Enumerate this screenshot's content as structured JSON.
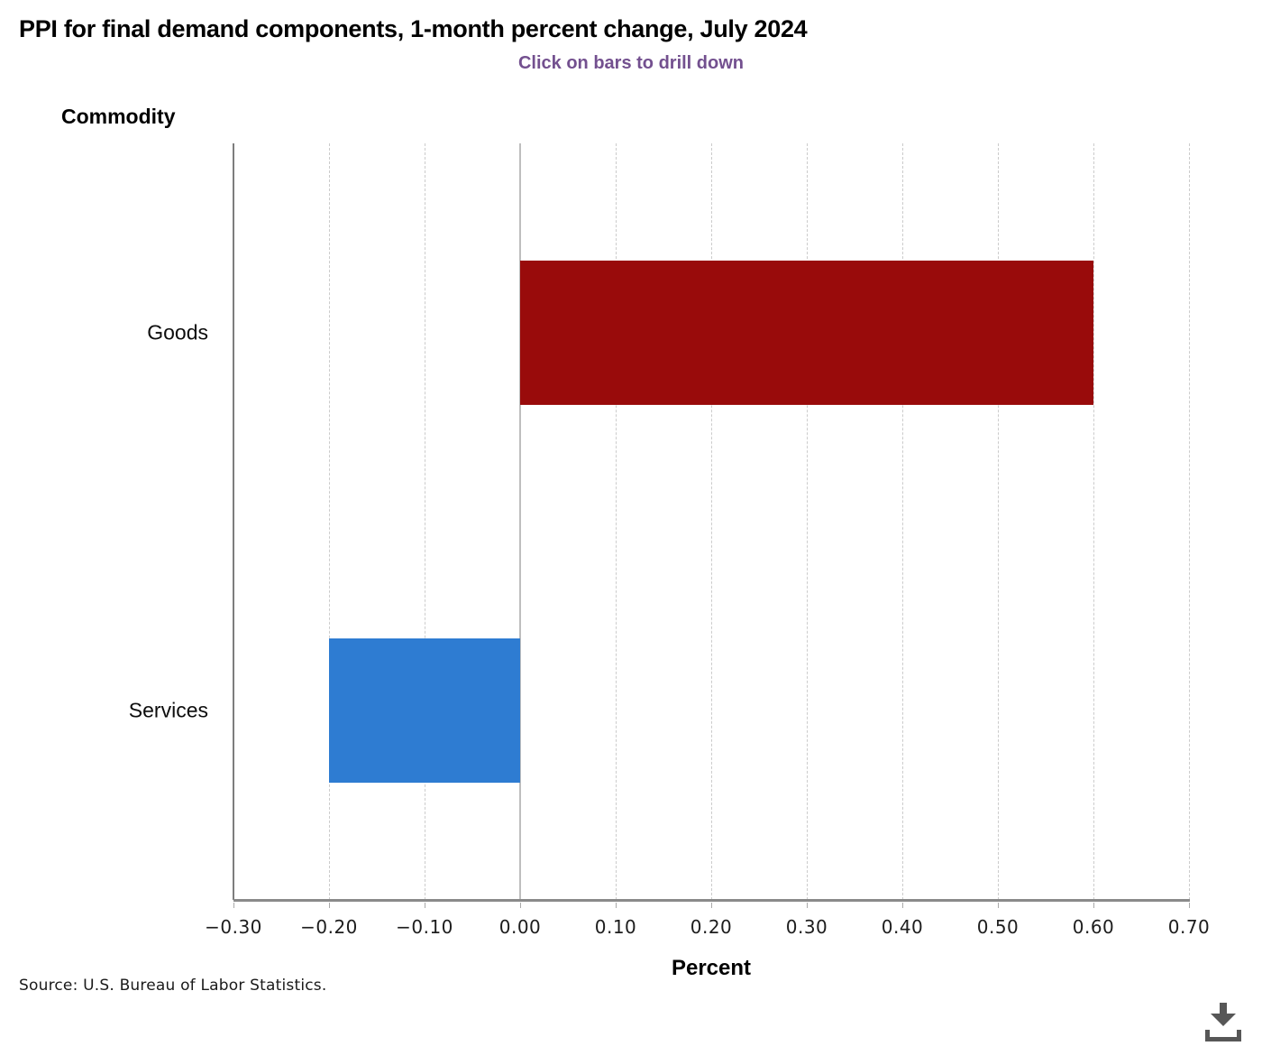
{
  "header": {
    "title": "PPI for final demand components, 1-month percent change, July 2024",
    "subtitle": "Click on bars to drill down"
  },
  "footer": {
    "source": "Source: U.S. Bureau of Labor Statistics."
  },
  "icons": {
    "download": "download-icon"
  },
  "colors": {
    "subtitle_purple": "#73508F",
    "goods_bar_red": "#990B0B",
    "services_bar_blue": "#2E7CD2",
    "axis_gray": "#8A8A8A",
    "zero_line_gray": "#BEBEBE",
    "gridline_gray": "#CBCBCB",
    "download_icon_gray": "#575757"
  },
  "chart_data": {
    "type": "bar",
    "orientation": "horizontal",
    "title": "PPI for final demand components, 1-month percent change, July 2024",
    "subtitle": "Click on bars to drill down",
    "categories": [
      "Goods",
      "Services"
    ],
    "values": [
      0.6,
      -0.2
    ],
    "bar_colors": [
      "#990B0B",
      "#2E7CD2"
    ],
    "xlabel": "Percent",
    "ylabel": "Commodity",
    "xlim": [
      -0.3,
      0.7
    ],
    "xtick_values": [
      -0.3,
      -0.2,
      -0.1,
      0,
      0.1,
      0.2,
      0.3,
      0.4,
      0.5,
      0.6,
      0.7
    ],
    "xtick_labels": [
      "−0.30",
      "−0.20",
      "−0.10",
      "0.00",
      "0.10",
      "0.20",
      "0.30",
      "0.40",
      "0.50",
      "0.60",
      "0.70"
    ],
    "grid": "vertical-dashed",
    "legend": "none"
  }
}
